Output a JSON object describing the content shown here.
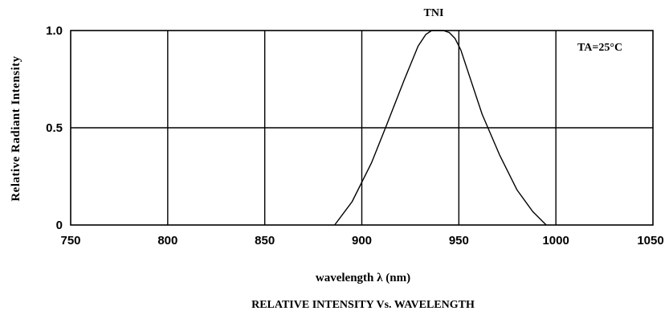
{
  "chart_data": {
    "type": "line",
    "title": "TNI",
    "caption": "RELATIVE INTENSITY Vs. WAVELENGTH",
    "annotation": "TA=25°C",
    "xlabel": "wavelength λ (nm)",
    "ylabel": "Relative Radiant Intensity",
    "xlim": [
      750,
      1050
    ],
    "ylim": [
      0,
      1.0
    ],
    "x_ticks": [
      750,
      800,
      850,
      900,
      950,
      1000,
      1050
    ],
    "y_ticks": [
      0,
      0.5,
      1.0
    ],
    "x_tick_labels": [
      "750",
      "800",
      "850",
      "900",
      "950",
      "1000",
      "1050"
    ],
    "y_tick_labels": [
      "0",
      "0.5",
      "1.0"
    ],
    "grid": true,
    "series": [
      {
        "x": [
          886,
          895,
          905,
          913,
          922,
          929,
          933,
          936,
          939,
          942,
          945,
          948,
          951,
          955,
          962,
          971,
          980,
          988,
          995
        ],
        "y": [
          0.0,
          0.12,
          0.32,
          0.52,
          0.75,
          0.92,
          0.98,
          1.0,
          1.0,
          1.0,
          0.99,
          0.96,
          0.9,
          0.78,
          0.57,
          0.36,
          0.18,
          0.07,
          0.0
        ]
      }
    ]
  }
}
